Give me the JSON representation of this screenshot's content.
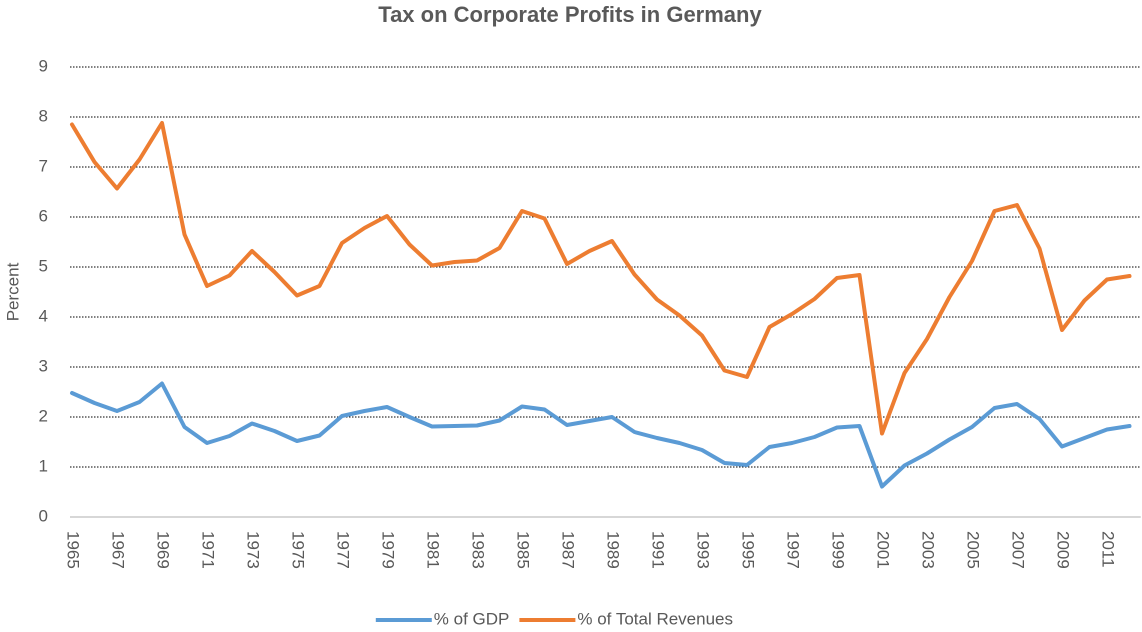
{
  "chart_data": {
    "type": "line",
    "title": "Tax on Corporate Profits in Germany",
    "y_label": "Percent",
    "categories": [
      "1965",
      null,
      "1967",
      null,
      "1969",
      null,
      "1971",
      null,
      "1973",
      null,
      "1975",
      null,
      "1977",
      null,
      "1979",
      null,
      "1981",
      null,
      "1983",
      null,
      "1985",
      null,
      "1987",
      null,
      "1989",
      null,
      "1991",
      null,
      "1993",
      null,
      "1995",
      null,
      "1997",
      null,
      "1999",
      null,
      "2001",
      null,
      "2003",
      null,
      "2005",
      null,
      "2007",
      null,
      "2009",
      null,
      "2011",
      null
    ],
    "series": [
      {
        "name": "% of GDP",
        "color": "#5b9bd5",
        "values": [
          2.48,
          2.28,
          2.12,
          2.3,
          2.67,
          1.8,
          1.48,
          1.62,
          1.87,
          1.72,
          1.52,
          1.63,
          2.02,
          2.12,
          2.2,
          2.0,
          1.81,
          1.82,
          1.83,
          1.93,
          2.21,
          2.15,
          1.84,
          1.92,
          2.0,
          1.7,
          1.58,
          1.48,
          1.34,
          1.08,
          1.04,
          1.4,
          1.48,
          1.6,
          1.79,
          1.82,
          0.61,
          1.03,
          1.27,
          1.55,
          1.8,
          2.18,
          2.26,
          1.96,
          1.41,
          1.58,
          1.75,
          1.82
        ]
      },
      {
        "name": "% of Total Revenues",
        "color": "#ed7d31",
        "values": [
          7.85,
          7.1,
          6.57,
          7.15,
          7.88,
          5.65,
          4.62,
          4.83,
          5.32,
          4.9,
          4.43,
          4.62,
          5.48,
          5.78,
          6.02,
          5.45,
          5.03,
          5.1,
          5.13,
          5.38,
          6.12,
          5.97,
          5.06,
          5.32,
          5.52,
          4.85,
          4.35,
          4.03,
          3.63,
          2.93,
          2.8,
          3.8,
          4.06,
          4.36,
          4.78,
          4.84,
          1.67,
          2.88,
          3.56,
          4.4,
          5.12,
          6.12,
          6.24,
          5.37,
          3.74,
          4.33,
          4.75,
          4.82
        ]
      }
    ],
    "ylim": [
      0,
      9
    ],
    "yticks": [
      0,
      1,
      2,
      3,
      4,
      5,
      6,
      7,
      8,
      9
    ],
    "grid": true,
    "legend": "bottom"
  }
}
